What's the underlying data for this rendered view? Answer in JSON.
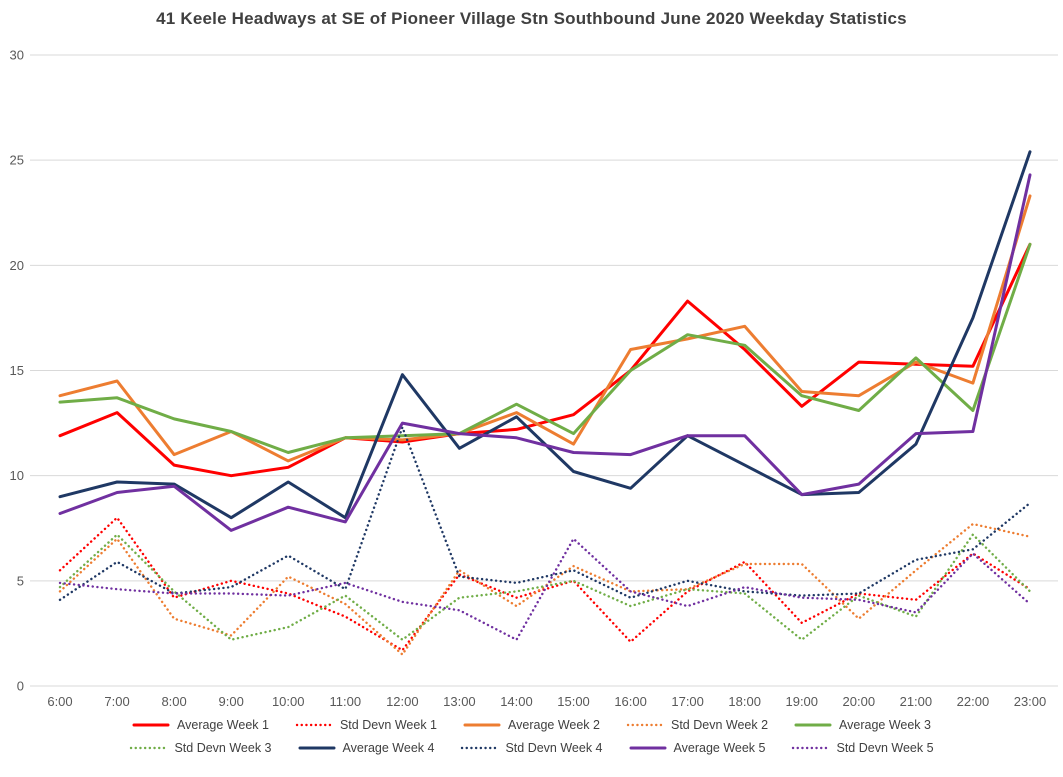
{
  "chart_data": {
    "type": "line",
    "title": "41 Keele Headways at SE of Pioneer Village Stn Southbound June 2020 Weekday Statistics",
    "xlabel": "",
    "ylabel": "",
    "x": [
      "6:00",
      "7:00",
      "8:00",
      "9:00",
      "10:00",
      "11:00",
      "12:00",
      "13:00",
      "14:00",
      "15:00",
      "16:00",
      "17:00",
      "18:00",
      "19:00",
      "20:00",
      "21:00",
      "22:00",
      "23:00"
    ],
    "ylim": [
      0,
      30
    ],
    "yticks": [
      0,
      5,
      10,
      15,
      20,
      25,
      30
    ],
    "grid": "horizontal",
    "gridline_color": "#D9D9D9",
    "legend_position": "bottom",
    "series": [
      {
        "name": "Average Week 1",
        "color": "#FF0000",
        "style": "solid",
        "values": [
          11.9,
          13.0,
          10.5,
          10.0,
          10.4,
          11.8,
          11.6,
          12.0,
          12.2,
          12.9,
          15.0,
          18.3,
          16.0,
          13.3,
          15.4,
          15.3,
          15.2,
          21.0
        ]
      },
      {
        "name": "Std Devn Week 1",
        "color": "#FF0000",
        "style": "dotted",
        "values": [
          5.5,
          8.0,
          4.2,
          5.0,
          4.4,
          3.3,
          1.7,
          5.3,
          4.2,
          5.0,
          2.1,
          4.5,
          5.9,
          3.0,
          4.4,
          4.1,
          6.3,
          4.6
        ]
      },
      {
        "name": "Average Week 2",
        "color": "#ED7D31",
        "style": "solid",
        "values": [
          13.8,
          14.5,
          11.0,
          12.1,
          10.7,
          11.8,
          11.7,
          12.0,
          13.0,
          11.5,
          16.0,
          16.5,
          17.1,
          14.0,
          13.8,
          15.4,
          14.4,
          23.3
        ]
      },
      {
        "name": "Std Devn Week 2",
        "color": "#ED7D31",
        "style": "dotted",
        "values": [
          4.5,
          7.0,
          3.2,
          2.4,
          5.2,
          3.9,
          1.5,
          5.5,
          3.8,
          5.7,
          4.5,
          4.6,
          5.8,
          5.8,
          3.2,
          5.5,
          7.7,
          7.1
        ]
      },
      {
        "name": "Average Week 3",
        "color": "#70AD47",
        "style": "solid",
        "values": [
          13.5,
          13.7,
          12.7,
          12.1,
          11.1,
          11.8,
          11.9,
          12.0,
          13.4,
          12.0,
          15.0,
          16.7,
          16.2,
          13.8,
          13.1,
          15.6,
          13.1,
          21.0
        ]
      },
      {
        "name": "Std Devn Week 3",
        "color": "#70AD47",
        "style": "dotted",
        "values": [
          4.7,
          7.2,
          4.5,
          2.2,
          2.8,
          4.3,
          2.2,
          4.2,
          4.5,
          5.0,
          3.8,
          4.6,
          4.4,
          2.2,
          4.3,
          3.3,
          7.2,
          4.5
        ]
      },
      {
        "name": "Average Week 4",
        "color": "#1F3864",
        "style": "solid",
        "values": [
          9.0,
          9.7,
          9.6,
          8.0,
          9.7,
          8.0,
          14.8,
          11.3,
          12.8,
          10.2,
          9.4,
          11.9,
          10.5,
          9.1,
          9.2,
          11.5,
          17.5,
          25.4
        ]
      },
      {
        "name": "Std Devn Week 4",
        "color": "#1F3864",
        "style": "dotted",
        "values": [
          4.1,
          5.9,
          4.4,
          4.7,
          6.2,
          4.6,
          12.3,
          5.2,
          4.9,
          5.5,
          4.2,
          5.0,
          4.5,
          4.3,
          4.4,
          6.0,
          6.5,
          8.7
        ]
      },
      {
        "name": "Average Week 5",
        "color": "#7030A0",
        "style": "solid",
        "values": [
          8.2,
          9.2,
          9.5,
          7.4,
          8.5,
          7.8,
          12.5,
          12.0,
          11.8,
          11.1,
          11.0,
          11.9,
          11.9,
          9.1,
          9.6,
          12.0,
          12.1,
          24.3
        ]
      },
      {
        "name": "Std Devn Week 5",
        "color": "#7030A0",
        "style": "dotted",
        "values": [
          4.9,
          4.6,
          4.4,
          4.4,
          4.3,
          4.9,
          4.0,
          3.6,
          2.2,
          7.0,
          4.5,
          3.8,
          4.7,
          4.2,
          4.1,
          3.5,
          6.3,
          3.9
        ]
      }
    ],
    "legend_rows": [
      [
        0,
        1,
        2,
        3,
        4
      ],
      [
        5,
        6,
        7,
        8,
        9
      ]
    ]
  }
}
